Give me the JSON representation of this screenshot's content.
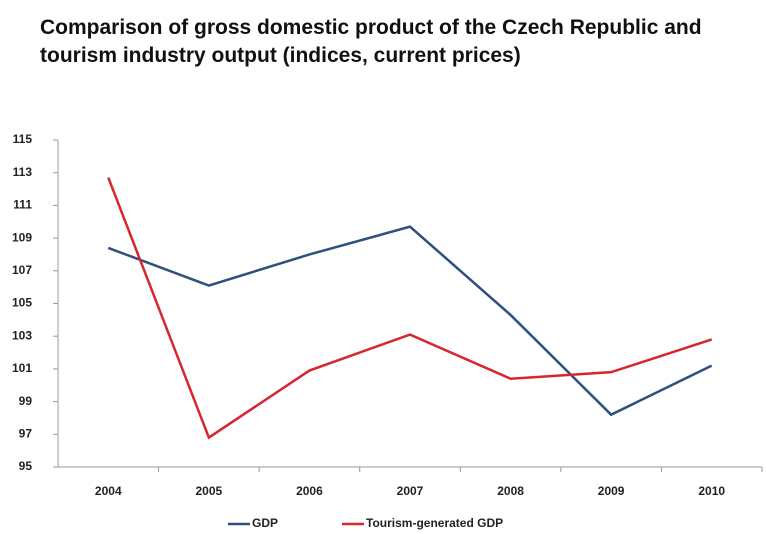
{
  "chart_data": {
    "type": "line",
    "title": "Comparison of gross domestic product of the Czech Republic and tourism industry output (indices, current prices)",
    "categories": [
      "2004",
      "2005",
      "2006",
      "2007",
      "2008",
      "2009",
      "2010"
    ],
    "series": [
      {
        "name": "GDP",
        "color": "#2f4f7f",
        "values": [
          108.4,
          106.1,
          108.0,
          109.7,
          104.3,
          98.2,
          101.2
        ]
      },
      {
        "name": "Tourism-generated GDP",
        "color": "#d7262e",
        "values": [
          112.7,
          96.8,
          100.9,
          103.1,
          100.4,
          100.8,
          102.8
        ]
      }
    ],
    "ylim": [
      95,
      115
    ],
    "yticks": [
      95,
      97,
      99,
      101,
      103,
      105,
      107,
      109,
      111,
      113,
      115
    ],
    "grid": false,
    "legend": "bottom"
  }
}
